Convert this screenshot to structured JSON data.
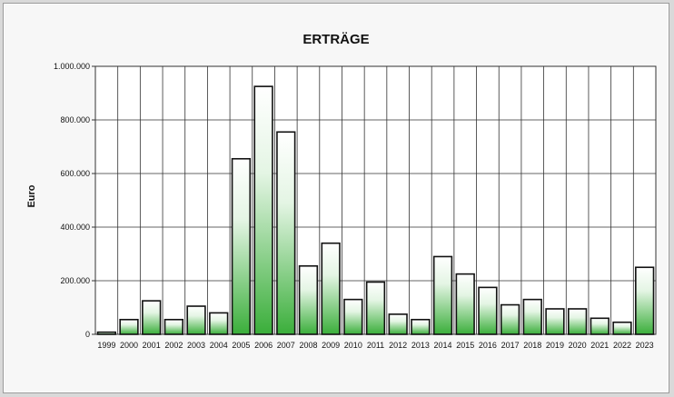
{
  "chart_data": {
    "type": "bar",
    "title": "ERTRÄGE",
    "ylabel": "Euro",
    "xlabel": "",
    "ylim": [
      0,
      1000000
    ],
    "yticks": [
      0,
      200000,
      400000,
      600000,
      800000,
      1000000
    ],
    "ytick_labels": [
      "0",
      "200.000",
      "400.000",
      "600.000",
      "800.000",
      "1.000.000"
    ],
    "grid": true,
    "legend": "none",
    "categories": [
      "1999",
      "2000",
      "2001",
      "2002",
      "2003",
      "2004",
      "2005",
      "2006",
      "2007",
      "2008",
      "2009",
      "2010",
      "2011",
      "2012",
      "2013",
      "2014",
      "2015",
      "2016",
      "2017",
      "2018",
      "2019",
      "2020",
      "2021",
      "2022",
      "2023"
    ],
    "values": [
      8000,
      55000,
      125000,
      55000,
      105000,
      80000,
      655000,
      925000,
      755000,
      255000,
      340000,
      130000,
      195000,
      75000,
      55000,
      290000,
      225000,
      175000,
      110000,
      130000,
      95000,
      95000,
      60000,
      45000,
      250000
    ],
    "colors": {
      "bar_top": "#ffffff",
      "bar_bottom": "#3aae3a",
      "bar_stroke": "#111111",
      "grid": "#333333"
    }
  }
}
